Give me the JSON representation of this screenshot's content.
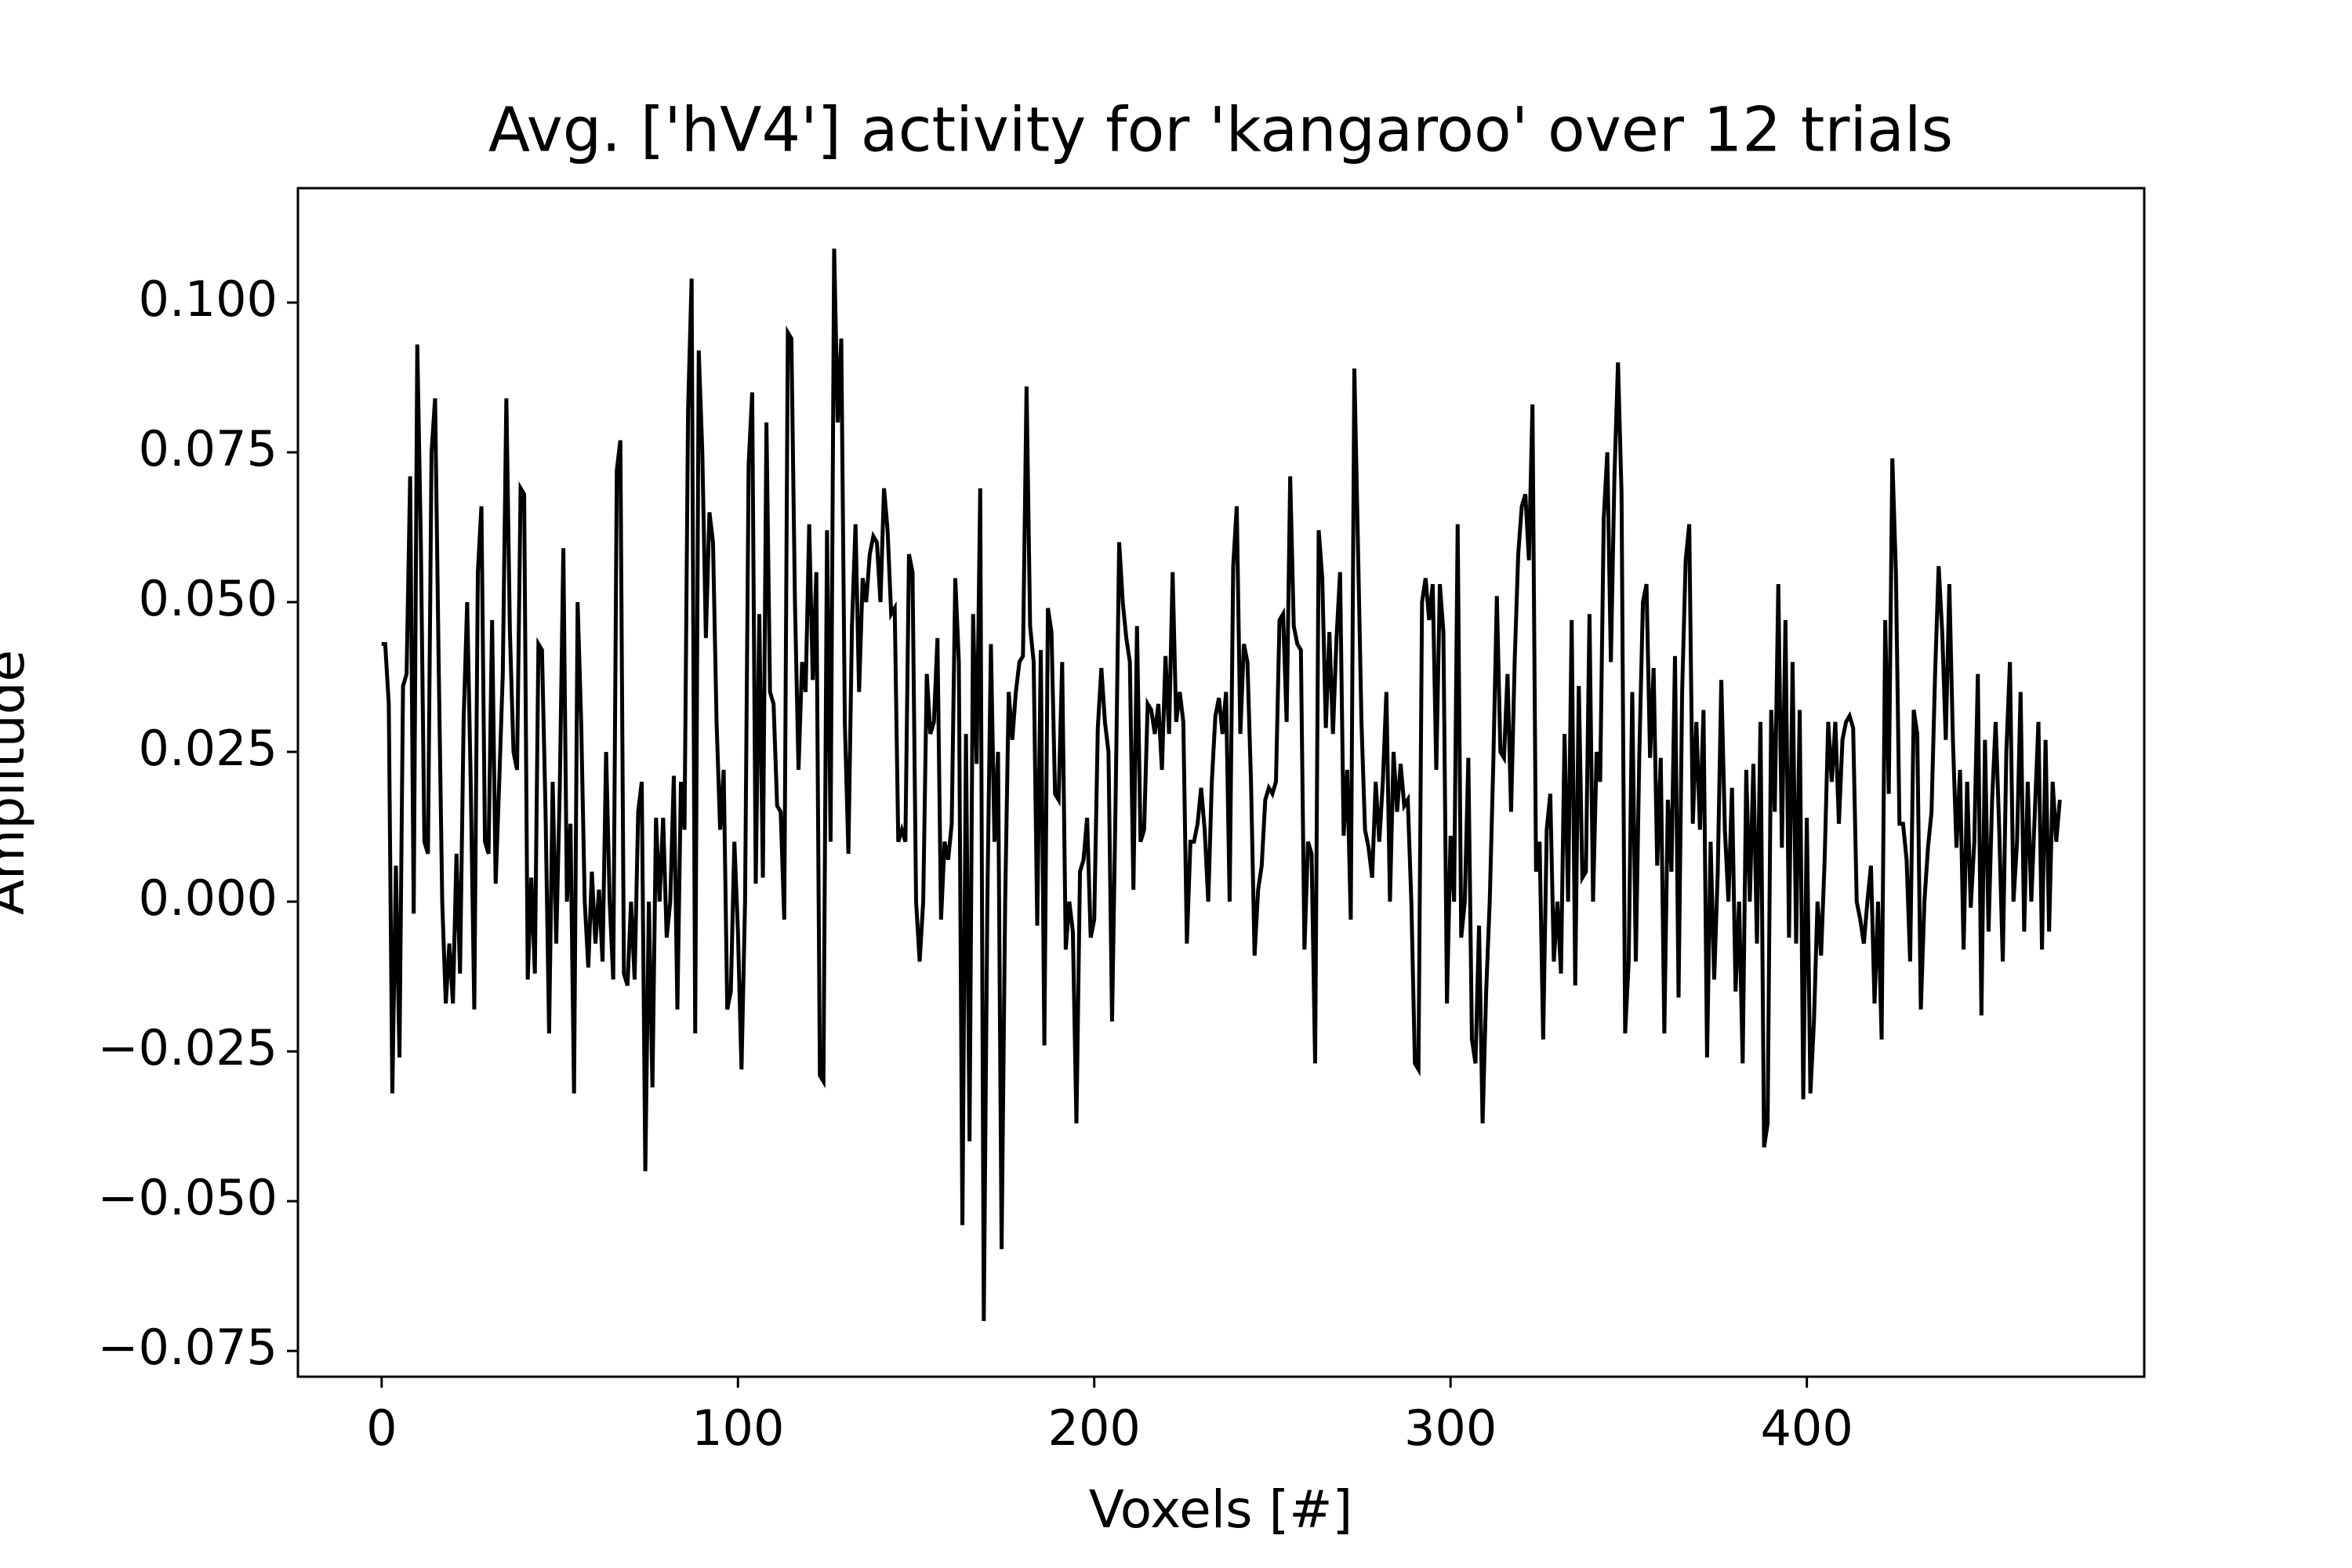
{
  "chart_data": {
    "type": "line",
    "title": "Avg. ['hV4'] activity for 'kangaroo' over 12 trials",
    "x_label": "Voxels [#]",
    "y_label": "Amplitude",
    "xlim": [
      -23.5,
      494.7
    ],
    "ylim": [
      -0.0793,
      0.1191
    ],
    "xticks": [
      0,
      100,
      200,
      300,
      400
    ],
    "yticks": [
      {
        "value": -0.075,
        "label": "−0.075"
      },
      {
        "value": -0.05,
        "label": "−0.050"
      },
      {
        "value": -0.025,
        "label": "−0.025"
      },
      {
        "value": 0,
        "label": "0.000"
      },
      0.025,
      {
        "value": 0.05,
        "label": "0.050"
      },
      0.075,
      {
        "value": 0.1,
        "label": "0.100"
      }
    ],
    "grid": false,
    "series": [
      {
        "name": "Amplitude",
        "color": "#000000",
        "values": [
          0.043,
          0.043,
          0.033,
          -0.032,
          0.006,
          -0.026,
          0.036,
          0.038,
          0.071,
          -0.002,
          0.093,
          0.06,
          0.01,
          0.008,
          0.075,
          0.084,
          0.04,
          0.0,
          -0.017,
          -0.007,
          -0.017,
          0.008,
          -0.012,
          0.03,
          0.05,
          0.02,
          -0.018,
          0.055,
          0.066,
          0.01,
          0.008,
          0.047,
          0.003,
          0.02,
          0.038,
          0.084,
          0.045,
          0.025,
          0.022,
          0.069,
          0.068,
          -0.013,
          0.004,
          -0.012,
          0.043,
          0.042,
          0.015,
          -0.022,
          0.02,
          -0.007,
          0.019,
          0.059,
          0.0,
          0.013,
          -0.032,
          0.05,
          0.03,
          0.0,
          -0.011,
          0.005,
          -0.007,
          0.002,
          -0.01,
          0.025,
          0.0,
          -0.013,
          0.072,
          0.077,
          -0.012,
          -0.014,
          0.0,
          -0.013,
          0.015,
          0.02,
          -0.045,
          0.0,
          -0.031,
          0.014,
          0.0,
          0.014,
          -0.006,
          0.0,
          0.021,
          -0.018,
          0.02,
          0.012,
          0.082,
          0.104,
          -0.022,
          0.092,
          0.075,
          0.044,
          0.065,
          0.06,
          0.03,
          0.012,
          0.022,
          -0.018,
          -0.015,
          0.01,
          -0.005,
          -0.028,
          0.0,
          0.073,
          0.085,
          0.003,
          0.048,
          0.004,
          0.08,
          0.035,
          0.033,
          0.016,
          0.015,
          -0.003,
          0.095,
          0.094,
          0.05,
          0.022,
          0.04,
          0.035,
          0.063,
          0.037,
          0.055,
          -0.029,
          -0.03,
          0.062,
          0.01,
          0.109,
          0.08,
          0.094,
          0.03,
          0.008,
          0.046,
          0.063,
          0.035,
          0.054,
          0.05,
          0.058,
          0.061,
          0.06,
          0.05,
          0.069,
          0.062,
          0.048,
          0.049,
          0.01,
          0.012,
          0.01,
          0.058,
          0.055,
          0.0,
          -0.01,
          0.0,
          0.038,
          0.028,
          0.03,
          0.044,
          -0.003,
          0.01,
          0.007,
          0.013,
          0.054,
          0.04,
          -0.054,
          0.028,
          -0.04,
          0.048,
          0.023,
          0.069,
          -0.07,
          0.0,
          0.043,
          0.01,
          0.025,
          -0.058,
          0.0,
          0.035,
          0.027,
          0.035,
          0.04,
          0.041,
          0.086,
          0.046,
          0.04,
          -0.004,
          0.042,
          -0.024,
          0.049,
          0.045,
          0.018,
          0.017,
          0.04,
          -0.008,
          0.0,
          -0.005,
          -0.037,
          0.005,
          0.007,
          0.014,
          -0.006,
          -0.003,
          0.029,
          0.039,
          0.03,
          0.025,
          -0.02,
          0.017,
          0.06,
          0.05,
          0.044,
          0.04,
          0.002,
          0.046,
          0.01,
          0.012,
          0.033,
          0.032,
          0.028,
          0.033,
          0.022,
          0.041,
          0.028,
          0.055,
          0.03,
          0.035,
          0.03,
          -0.007,
          0.01,
          0.01,
          0.013,
          0.019,
          0.012,
          0.0,
          0.02,
          0.031,
          0.034,
          0.028,
          0.035,
          0.0,
          0.056,
          0.066,
          0.028,
          0.043,
          0.04,
          0.02,
          -0.009,
          0.002,
          0.006,
          0.017,
          0.019,
          0.018,
          0.02,
          0.047,
          0.048,
          0.03,
          0.071,
          0.046,
          0.043,
          0.042,
          -0.008,
          0.01,
          0.008,
          -0.027,
          0.062,
          0.054,
          0.029,
          0.045,
          0.028,
          0.044,
          0.055,
          0.011,
          0.022,
          -0.003,
          0.089,
          0.06,
          0.03,
          0.012,
          0.009,
          0.004,
          0.02,
          0.01,
          0.02,
          0.035,
          0.0,
          0.025,
          0.015,
          0.023,
          0.016,
          0.017,
          0.0,
          -0.027,
          -0.028,
          0.05,
          0.054,
          0.047,
          0.053,
          0.022,
          0.053,
          0.045,
          -0.017,
          0.011,
          0.0,
          0.063,
          -0.006,
          0.0,
          0.024,
          -0.023,
          -0.027,
          -0.004,
          -0.037,
          -0.015,
          0.0,
          0.023,
          0.051,
          0.025,
          0.024,
          0.038,
          0.015,
          0.04,
          0.058,
          0.066,
          0.068,
          0.057,
          0.083,
          0.005,
          0.01,
          -0.023,
          0.012,
          0.018,
          -0.01,
          0.0,
          -0.012,
          0.028,
          0.0,
          0.047,
          -0.014,
          0.036,
          0.004,
          0.005,
          0.048,
          0.0,
          0.025,
          0.02,
          0.064,
          0.075,
          0.04,
          0.071,
          0.09,
          0.068,
          -0.022,
          -0.01,
          0.035,
          -0.01,
          0.025,
          0.05,
          0.053,
          0.024,
          0.039,
          0.006,
          0.024,
          -0.022,
          0.017,
          0.005,
          0.041,
          -0.016,
          0.035,
          0.057,
          0.063,
          0.013,
          0.03,
          0.012,
          0.032,
          -0.026,
          0.01,
          -0.013,
          0.005,
          0.037,
          0.012,
          0.0,
          0.019,
          -0.015,
          0.0,
          -0.027,
          0.022,
          0.0,
          0.023,
          -0.007,
          0.03,
          -0.041,
          -0.037,
          0.032,
          0.015,
          0.053,
          0.009,
          0.047,
          -0.006,
          0.04,
          -0.007,
          0.032,
          -0.033,
          0.014,
          -0.032,
          -0.02,
          0.0,
          -0.009,
          0.007,
          0.03,
          0.02,
          0.03,
          0.013,
          0.027,
          0.03,
          0.031,
          0.029,
          0.0,
          -0.003,
          -0.007,
          0.0,
          0.006,
          -0.017,
          0.0,
          -0.023,
          0.047,
          0.018,
          0.074,
          0.055,
          0.013,
          0.013,
          0.007,
          -0.01,
          0.032,
          0.028,
          -0.018,
          0.0,
          0.009,
          0.015,
          0.038,
          0.056,
          0.045,
          0.027,
          0.053,
          0.027,
          0.009,
          0.022,
          -0.008,
          0.02,
          -0.001,
          0.01,
          0.038,
          -0.019,
          0.027,
          -0.005,
          0.017,
          0.03,
          0.012,
          -0.01,
          0.025,
          0.04,
          0.0,
          0.01,
          0.035,
          -0.005,
          0.02,
          0.0,
          0.015,
          0.03,
          -0.008,
          0.027,
          -0.005,
          0.02,
          0.01,
          0.017
        ]
      }
    ]
  }
}
